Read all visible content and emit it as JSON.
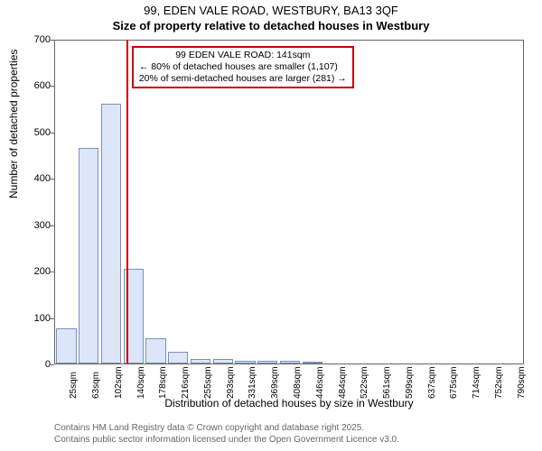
{
  "title_main": "99, EDEN VALE ROAD, WESTBURY, BA13 3QF",
  "title_sub": "Size of property relative to detached houses in Westbury",
  "chart": {
    "type": "bar",
    "y_label": "Number of detached properties",
    "x_label": "Distribution of detached houses by size in Westbury",
    "ylim": [
      0,
      700
    ],
    "ytick_step": 100,
    "yticks": [
      0,
      100,
      200,
      300,
      400,
      500,
      600,
      700
    ],
    "x_categories": [
      "25sqm",
      "63sqm",
      "102sqm",
      "140sqm",
      "178sqm",
      "216sqm",
      "255sqm",
      "293sqm",
      "331sqm",
      "369sqm",
      "408sqm",
      "446sqm",
      "484sqm",
      "522sqm",
      "561sqm",
      "599sqm",
      "637sqm",
      "675sqm",
      "714sqm",
      "752sqm",
      "790sqm"
    ],
    "values": [
      75,
      465,
      560,
      205,
      55,
      25,
      10,
      10,
      5,
      5,
      5,
      3,
      0,
      0,
      0,
      0,
      0,
      0,
      0,
      0,
      0
    ],
    "bar_fill": "#dce6f8",
    "bar_border": "#7a8fb8",
    "background_color": "#ffffff",
    "axis_color": "#666666",
    "marker": {
      "position_sqm": 141,
      "color": "#cc0000"
    }
  },
  "annotation": {
    "line1": "99 EDEN VALE ROAD: 141sqm",
    "line2": "← 80% of detached houses are smaller (1,107)",
    "line3": "20% of semi-detached houses are larger (281) →",
    "border_color": "#cc0000"
  },
  "footer": {
    "line1": "Contains HM Land Registry data © Crown copyright and database right 2025.",
    "line2": "Contains public sector information licensed under the Open Government Licence v3.0."
  }
}
